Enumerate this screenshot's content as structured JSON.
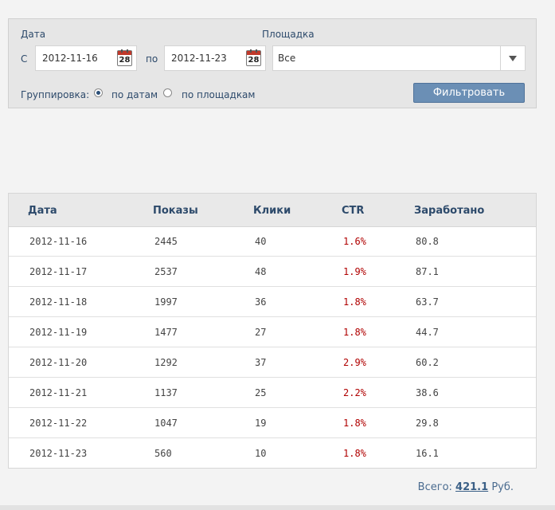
{
  "filter": {
    "date_label": "Дата",
    "from_label": "С",
    "date_from": "2012-11-16",
    "to_label": "по",
    "date_to": "2012-11-23",
    "calendar_icon_number": "28",
    "platform_label": "Площадка",
    "platform_value": "Все",
    "grouping_label": "Группировка:",
    "group_by_dates": "по датам",
    "group_by_platforms": "по площадкам",
    "grouping_selected": "по датам",
    "filter_button": "Фильтровать"
  },
  "table": {
    "headers": [
      "Дата",
      "Показы",
      "Клики",
      "CTR",
      "Заработано"
    ],
    "rows": [
      [
        "2012-11-16",
        "2445",
        "40",
        "1.6%",
        "80.8"
      ],
      [
        "2012-11-17",
        "2537",
        "48",
        "1.9%",
        "87.1"
      ],
      [
        "2012-11-18",
        "1997",
        "36",
        "1.8%",
        "63.7"
      ],
      [
        "2012-11-19",
        "1477",
        "27",
        "1.8%",
        "44.7"
      ],
      [
        "2012-11-20",
        "1292",
        "37",
        "2.9%",
        "60.2"
      ],
      [
        "2012-11-21",
        "1137",
        "25",
        "2.2%",
        "38.6"
      ],
      [
        "2012-11-22",
        "1047",
        "19",
        "1.8%",
        "29.8"
      ],
      [
        "2012-11-23",
        "560",
        "10",
        "1.8%",
        "16.1"
      ]
    ]
  },
  "total": {
    "label": "Всего:",
    "amount": "421.1",
    "currency": "Руб."
  },
  "colors": {
    "accent": "#6b8fb5",
    "ctr": "#b00000",
    "header_text": "#2d4a6b"
  }
}
